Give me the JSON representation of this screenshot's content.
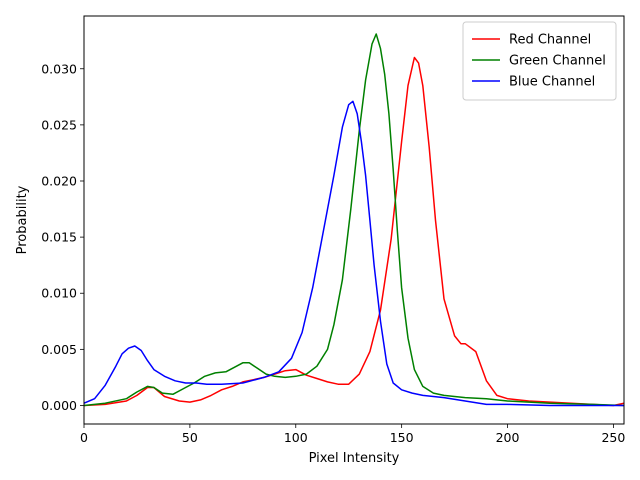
{
  "chart_data": {
    "type": "line",
    "xlabel": "Pixel Intensity",
    "ylabel": "Probability",
    "xlim": [
      0,
      255
    ],
    "ylim": [
      -0.00165,
      0.0347
    ],
    "x_ticks": [
      0,
      50,
      100,
      150,
      200,
      250
    ],
    "y_ticks": [
      0.0,
      0.005,
      0.01,
      0.015,
      0.02,
      0.025,
      0.03
    ],
    "y_tick_labels": [
      "0.000",
      "0.005",
      "0.010",
      "0.015",
      "0.020",
      "0.025",
      "0.030"
    ],
    "grid": false,
    "legend_position": "top-right",
    "series": [
      {
        "name": "Red Channel",
        "color": "#ff0000",
        "x": [
          0,
          10,
          20,
          25,
          30,
          33,
          38,
          45,
          50,
          55,
          60,
          65,
          70,
          75,
          80,
          85,
          90,
          95,
          100,
          105,
          110,
          115,
          120,
          125,
          130,
          135,
          140,
          145,
          150,
          153,
          156,
          158,
          160,
          163,
          166,
          170,
          175,
          178,
          180,
          185,
          190,
          195,
          200,
          210,
          220,
          230,
          240,
          250,
          255
        ],
        "y": [
          0.0,
          0.0001,
          0.0004,
          0.0009,
          0.0016,
          0.0016,
          0.0008,
          0.0004,
          0.0003,
          0.0005,
          0.0009,
          0.0014,
          0.0017,
          0.0021,
          0.0023,
          0.0025,
          0.0028,
          0.0031,
          0.0032,
          0.0027,
          0.0024,
          0.0021,
          0.0019,
          0.0019,
          0.0028,
          0.0048,
          0.0085,
          0.0148,
          0.0235,
          0.0285,
          0.031,
          0.0305,
          0.0285,
          0.023,
          0.0165,
          0.0095,
          0.0062,
          0.0055,
          0.0055,
          0.0048,
          0.0022,
          0.0009,
          0.0006,
          0.0004,
          0.0003,
          0.0002,
          0.0001,
          0.0,
          0.0002
        ]
      },
      {
        "name": "Green Channel",
        "color": "#008000",
        "x": [
          0,
          10,
          20,
          25,
          30,
          33,
          37,
          42,
          47,
          52,
          57,
          62,
          67,
          72,
          75,
          78,
          82,
          86,
          90,
          95,
          100,
          105,
          110,
          115,
          118,
          122,
          126,
          130,
          133,
          136,
          138,
          140,
          142,
          144,
          146,
          148,
          150,
          153,
          156,
          160,
          165,
          170,
          175,
          180,
          190,
          200,
          220,
          240,
          255
        ],
        "y": [
          0.0,
          0.0002,
          0.0006,
          0.0012,
          0.0017,
          0.0016,
          0.0011,
          0.001,
          0.0015,
          0.002,
          0.0026,
          0.0029,
          0.003,
          0.0035,
          0.0038,
          0.0038,
          0.0033,
          0.0028,
          0.0026,
          0.0025,
          0.0026,
          0.0028,
          0.0035,
          0.005,
          0.0072,
          0.0112,
          0.0175,
          0.0245,
          0.029,
          0.0322,
          0.0331,
          0.0318,
          0.0295,
          0.026,
          0.021,
          0.0155,
          0.0105,
          0.006,
          0.0032,
          0.0017,
          0.0011,
          0.0009,
          0.0008,
          0.0007,
          0.0006,
          0.0004,
          0.0002,
          0.0001,
          0.0
        ]
      },
      {
        "name": "Blue Channel",
        "color": "#0000ff",
        "x": [
          0,
          5,
          10,
          15,
          18,
          21,
          24,
          27,
          30,
          33,
          38,
          43,
          48,
          53,
          58,
          65,
          75,
          85,
          92,
          98,
          103,
          108,
          113,
          118,
          122,
          125,
          127,
          129,
          131,
          133,
          135,
          137,
          140,
          143,
          146,
          150,
          155,
          160,
          170,
          180,
          190,
          200,
          220,
          240,
          255
        ],
        "y": [
          0.0002,
          0.0006,
          0.0018,
          0.0035,
          0.0046,
          0.0051,
          0.0053,
          0.0049,
          0.004,
          0.0032,
          0.0026,
          0.0022,
          0.002,
          0.002,
          0.0019,
          0.0019,
          0.002,
          0.0025,
          0.003,
          0.0042,
          0.0065,
          0.0105,
          0.0155,
          0.0205,
          0.0248,
          0.0268,
          0.0271,
          0.026,
          0.0235,
          0.0205,
          0.0165,
          0.0125,
          0.0075,
          0.0037,
          0.002,
          0.0014,
          0.0011,
          0.0009,
          0.0007,
          0.0004,
          0.0001,
          0.0001,
          0.0,
          0.0,
          0.0
        ]
      }
    ]
  }
}
